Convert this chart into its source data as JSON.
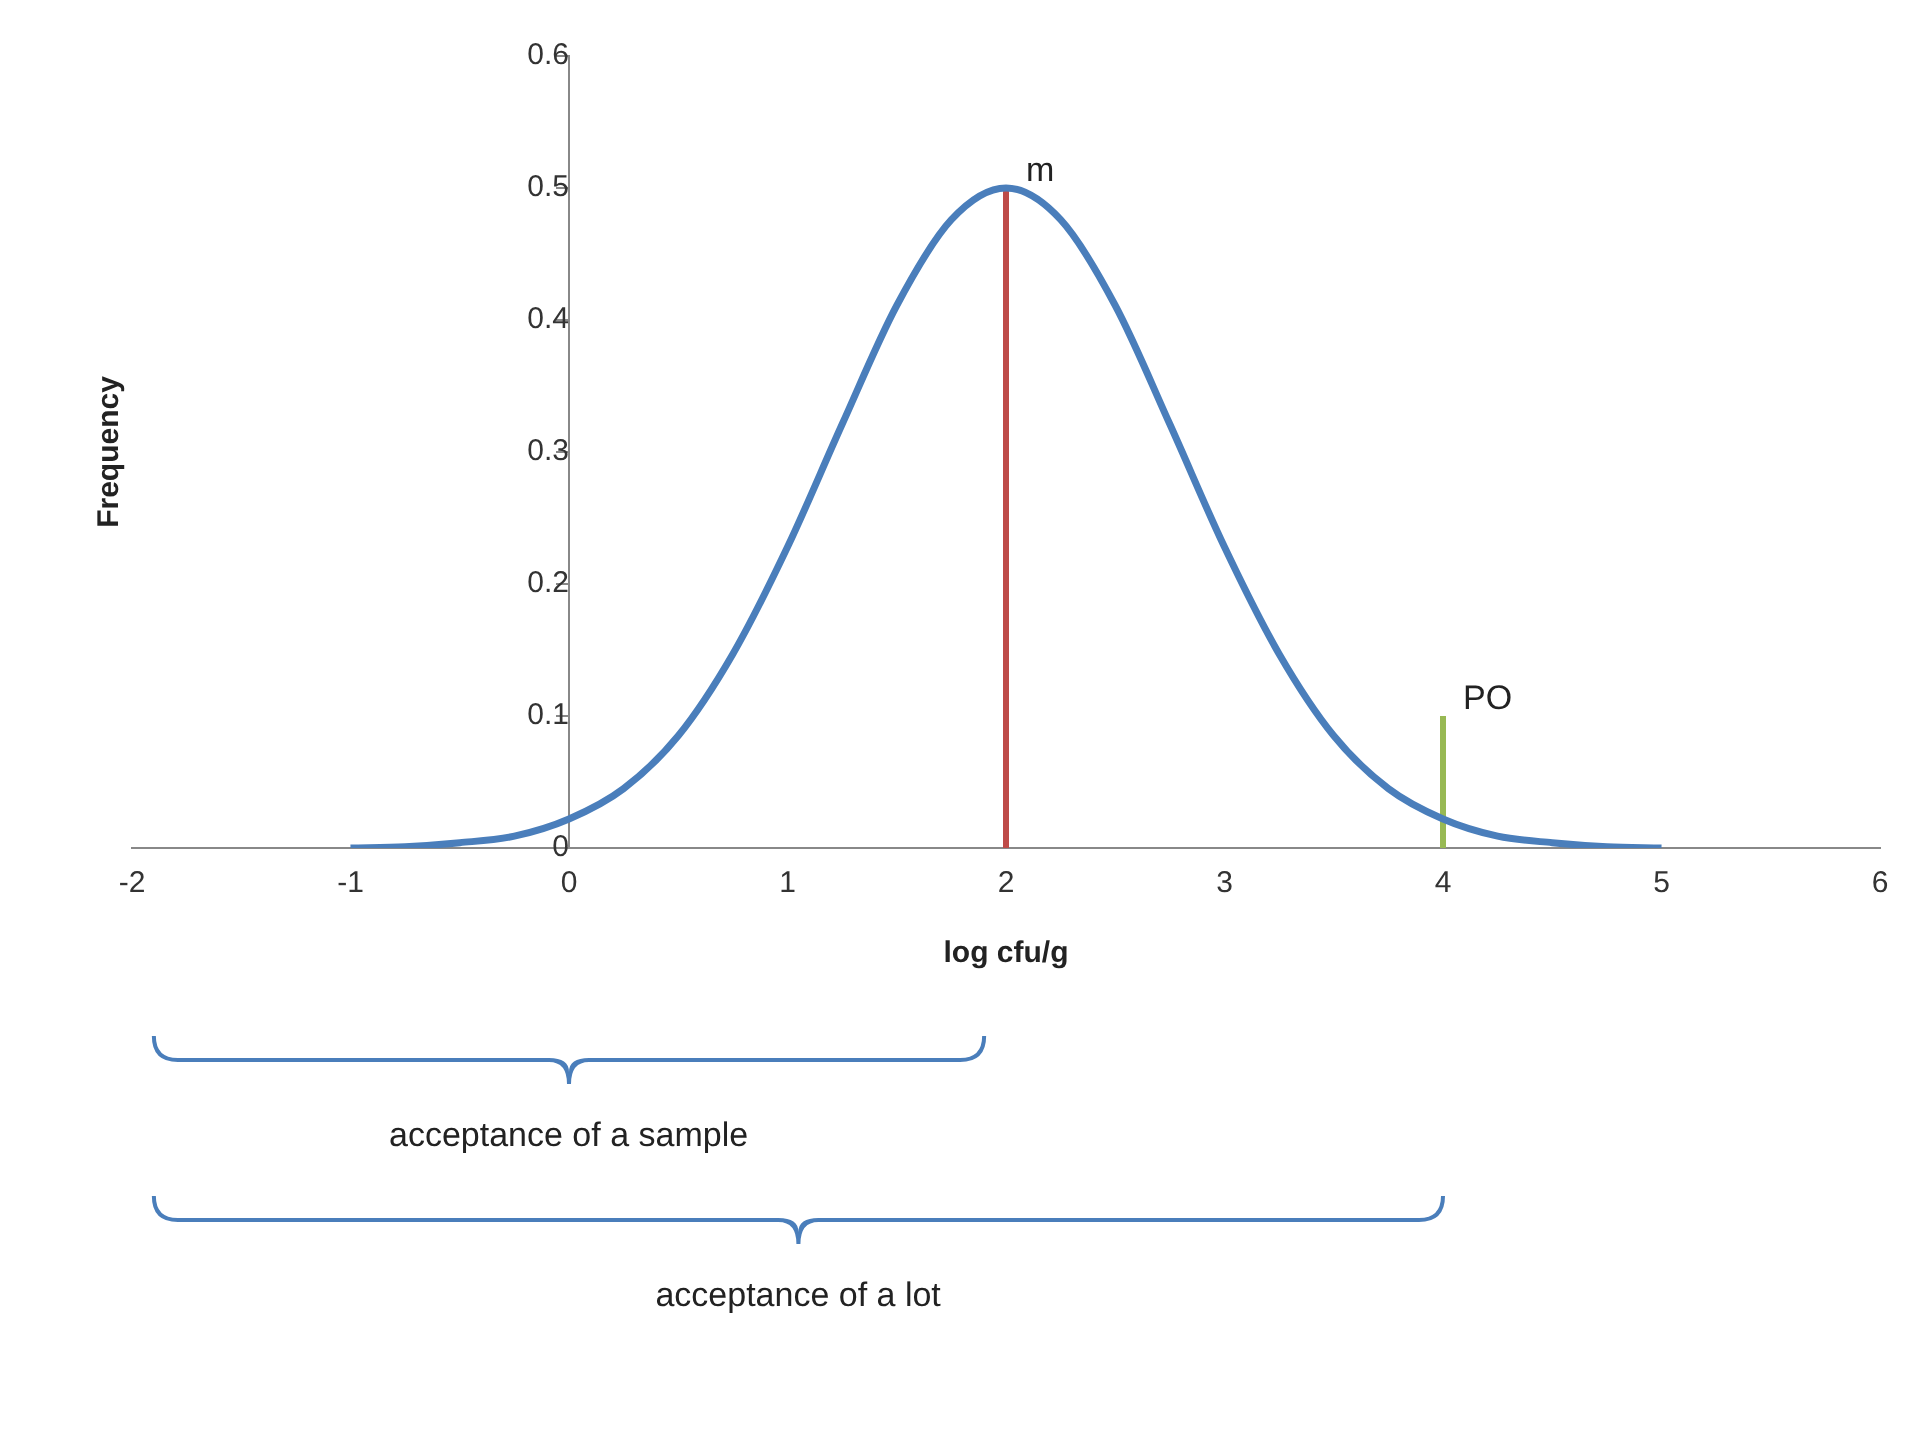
{
  "chart_data": {
    "type": "line",
    "xlabel": "log cfu/g",
    "ylabel": "Frequency",
    "xlim": [
      -2,
      6
    ],
    "xticks": [
      -2,
      -1,
      0,
      1,
      2,
      3,
      4,
      5,
      6
    ],
    "ylim": [
      0,
      0.6
    ],
    "yticks": [
      0,
      0.1,
      0.2,
      0.3,
      0.4,
      0.5,
      0.6
    ],
    "grid": false,
    "legend": false,
    "marker": "none",
    "line_style": "solid",
    "series": [
      {
        "color": "#4a7ebb",
        "x": [
          -1,
          -0.75,
          -0.5,
          -0.25,
          0,
          0.25,
          0.5,
          0.75,
          1,
          1.25,
          1.5,
          1.75,
          2,
          2.25,
          2.5,
          2.75,
          3,
          3.25,
          3.5,
          3.75,
          4,
          4.25,
          4.5,
          4.75,
          5
        ],
        "values": [
          0,
          0.001,
          0.004,
          0.009,
          0.022,
          0.045,
          0.085,
          0.147,
          0.228,
          0.321,
          0.411,
          0.476,
          0.5,
          0.476,
          0.411,
          0.321,
          0.228,
          0.147,
          0.085,
          0.045,
          0.022,
          0.009,
          0.004,
          0.001,
          0
        ]
      },
      {
        "name": "m",
        "color": "#be4b48",
        "x": [
          2,
          2
        ],
        "values": [
          0,
          0.5
        ]
      },
      {
        "name": "PO",
        "color": "#98b954",
        "x": [
          4,
          4
        ],
        "values": [
          0,
          0.1
        ]
      }
    ],
    "annotations": [
      "acceptance of a sample",
      "acceptance of a lot"
    ]
  }
}
